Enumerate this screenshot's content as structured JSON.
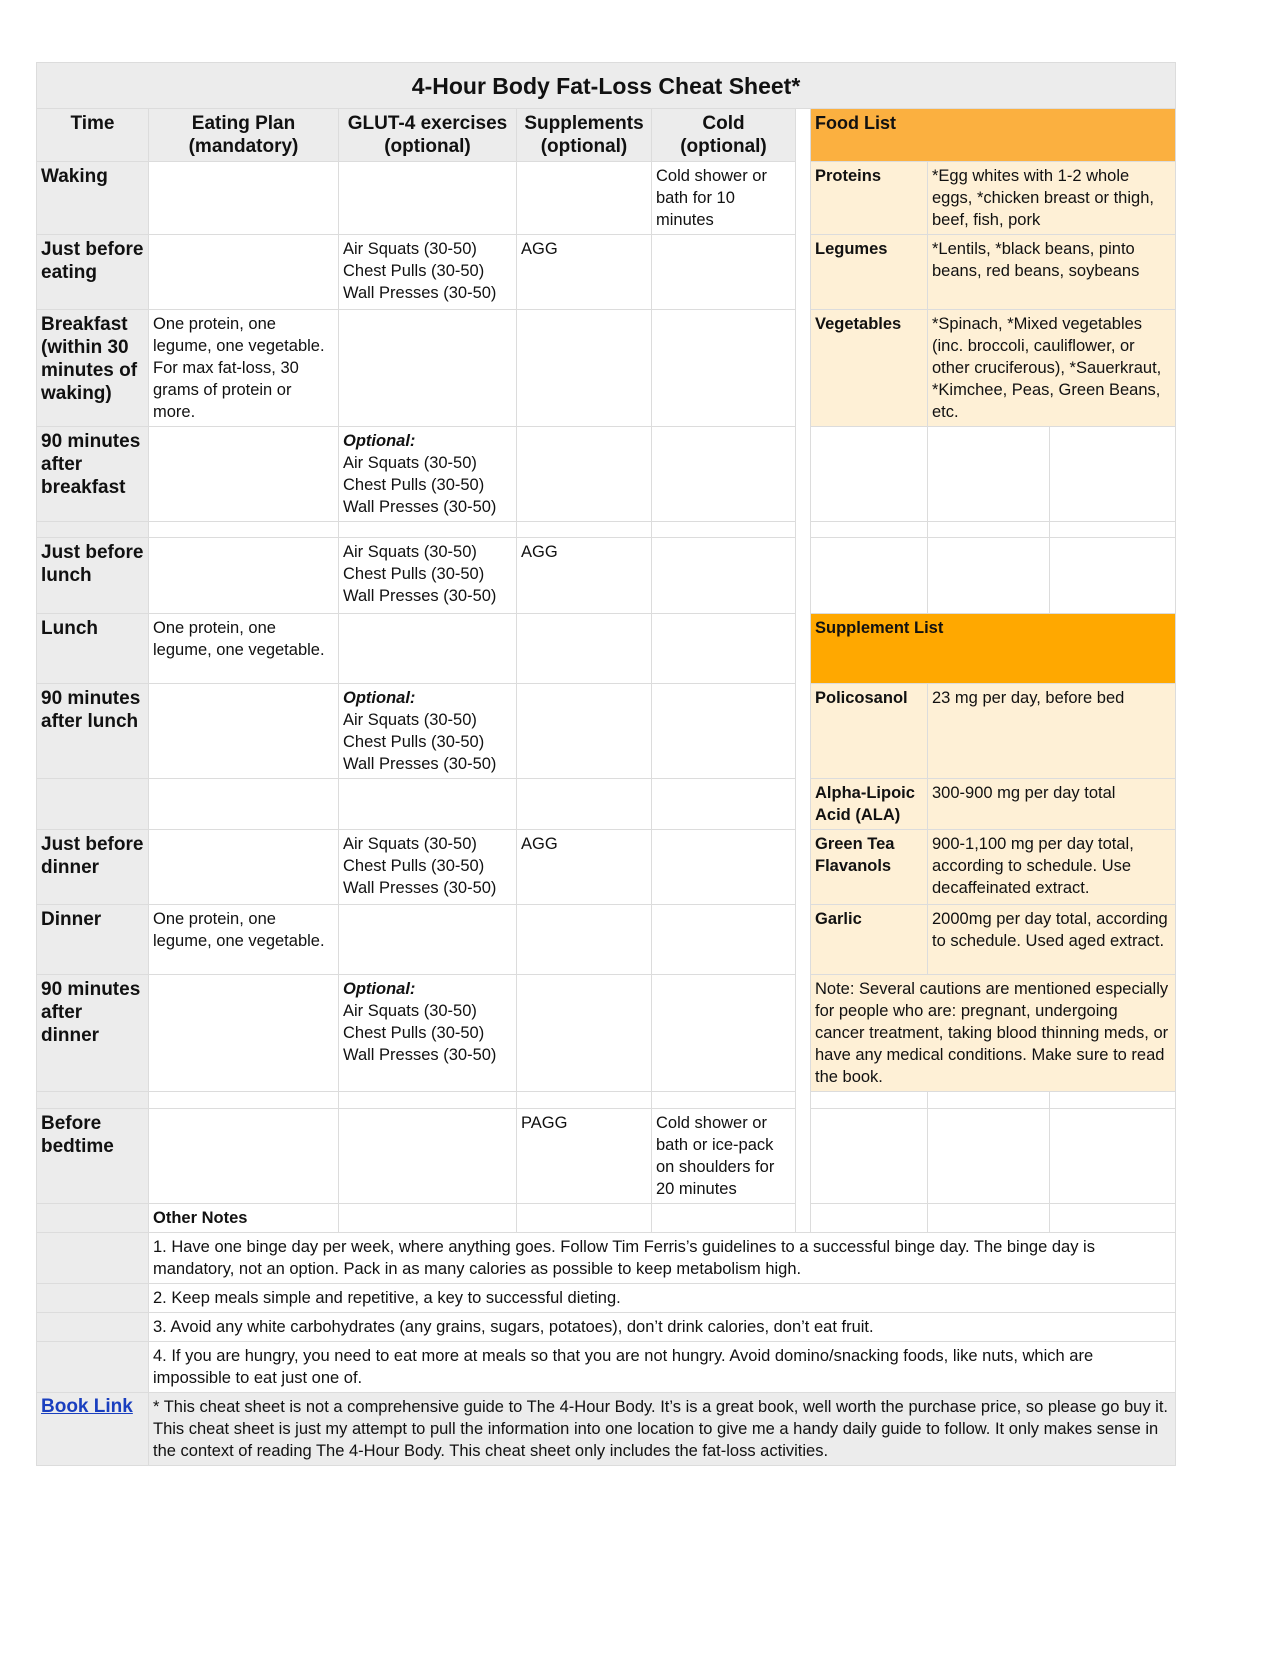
{
  "title": "4-Hour Body Fat-Loss Cheat Sheet*",
  "headers": [
    "Time",
    "Eating Plan\n(mandatory)",
    "GLUT-4 exercises\n(optional)",
    "Supplements\n(optional)",
    "Cold\n(optional)"
  ],
  "food_list": {
    "title": "Food List",
    "items": [
      {
        "name": "Proteins",
        "value": "*Egg whites with 1-2 whole eggs, *chicken breast or thigh, beef, fish, pork"
      },
      {
        "name": "Legumes",
        "value": "*Lentils, *black beans, pinto beans, red beans, soybeans"
      },
      {
        "name": "Vegetables",
        "value": "*Spinach, *Mixed vegetables (inc. broccoli, cauliflower, or other cruciferous), *Sauerkraut, *Kimchee, Peas, Green Beans, etc."
      }
    ]
  },
  "supplement_list": {
    "title": "Supplement List",
    "items": [
      {
        "name": "Policosanol",
        "value": "23 mg per day, before bed"
      },
      {
        "name": "Alpha-Lipoic Acid (ALA)",
        "value": "300-900 mg per day total"
      },
      {
        "name": "Green Tea Flavanols",
        "value": "900-1,100 mg per day total, according to schedule. Use decaffeinated extract."
      },
      {
        "name": "Garlic",
        "value": "2000mg per day total, according to schedule. Used aged extract."
      }
    ],
    "note": "Note: Several cautions are mentioned especially for people who are: pregnant, undergoing cancer treatment, taking blood thinning meds, or have any medical conditions. Make sure to read the book."
  },
  "schedule": [
    {
      "time": "Waking",
      "eat": "",
      "glut_opt": "",
      "glut": "",
      "supp": "",
      "cold": "Cold shower or bath for 10 minutes"
    },
    {
      "time": "Just before eating",
      "eat": "",
      "glut_opt": "",
      "glut": "Air Squats (30-50)\nChest Pulls (30-50)\nWall Presses (30-50)",
      "supp": "AGG",
      "cold": ""
    },
    {
      "time": "Breakfast (within 30 minutes of waking)",
      "eat": "One protein, one legume, one vegetable. For max fat-loss, 30 grams of protein or more.",
      "glut_opt": "",
      "glut": "",
      "supp": "",
      "cold": ""
    },
    {
      "time": "90 minutes after breakfast",
      "eat": "",
      "glut_opt": "Optional:",
      "glut": "Air Squats (30-50)\nChest Pulls (30-50)\nWall Presses (30-50)",
      "supp": "",
      "cold": ""
    },
    {
      "time": "",
      "eat": "",
      "glut_opt": "",
      "glut": "",
      "supp": "",
      "cold": ""
    },
    {
      "time": "Just before lunch",
      "eat": "",
      "glut_opt": "",
      "glut": "Air Squats (30-50)\nChest Pulls (30-50)\nWall Presses (30-50)",
      "supp": "AGG",
      "cold": ""
    },
    {
      "time": "Lunch",
      "eat": "One protein, one legume, one vegetable.",
      "glut_opt": "",
      "glut": "",
      "supp": "",
      "cold": ""
    },
    {
      "time": "90 minutes after lunch",
      "eat": "",
      "glut_opt": "Optional:",
      "glut": "Air Squats (30-50)\nChest Pulls (30-50)\nWall Presses (30-50)",
      "supp": "",
      "cold": ""
    },
    {
      "time": "",
      "eat": "",
      "glut_opt": "",
      "glut": "",
      "supp": "",
      "cold": ""
    },
    {
      "time": "Just before dinner",
      "eat": "",
      "glut_opt": "",
      "glut": "Air Squats (30-50)\nChest Pulls (30-50)\nWall Presses (30-50)",
      "supp": "AGG",
      "cold": ""
    },
    {
      "time": "Dinner",
      "eat": "One protein, one legume, one vegetable.",
      "glut_opt": "",
      "glut": "",
      "supp": "",
      "cold": ""
    },
    {
      "time": "90 minutes after dinner",
      "eat": "",
      "glut_opt": "Optional:",
      "glut": "Air Squats (30-50)\nChest Pulls (30-50)\nWall Presses (30-50)",
      "supp": "",
      "cold": ""
    },
    {
      "time": "",
      "eat": "",
      "glut_opt": "",
      "glut": "",
      "supp": "",
      "cold": ""
    },
    {
      "time": "Before bedtime",
      "eat": "",
      "glut_opt": "",
      "glut": "",
      "supp": "PAGG",
      "cold": "Cold shower or bath or ice-pack on shoulders for 20 minutes"
    }
  ],
  "other_notes": {
    "title": "Other Notes",
    "items": [
      "1. Have one binge day per week, where anything goes. Follow Tim Ferris’s guidelines to a successful binge day. The binge day is mandatory, not an option. Pack in as many calories as possible to keep metabolism high.",
      "2. Keep meals simple and repetitive, a key to successful dieting.",
      "3. Avoid any white carbohydrates (any grains, sugars, potatoes), don’t drink calories, don’t eat fruit.",
      "4. If you are hungry, you need to eat more at meals so that you are not hungry. Avoid domino/snacking foods, like nuts, which are impossible to eat just one of."
    ]
  },
  "book_link": "Book Link",
  "disclaimer": "* This cheat sheet is not a comprehensive guide to The 4-Hour Body. It’s is a great book, well worth the purchase price, so please go buy it. This cheat sheet is just my attempt to pull the information into one location to give me a handy daily guide to follow. It only makes sense in the context of reading The 4-Hour Body. This cheat sheet only includes the fat-loss activities.",
  "colors": {
    "food_header": "#fbb040",
    "supplement_header": "#ffa800",
    "peach": "#fef0d6",
    "grey": "#ececec",
    "link": "#1a3fbf"
  }
}
